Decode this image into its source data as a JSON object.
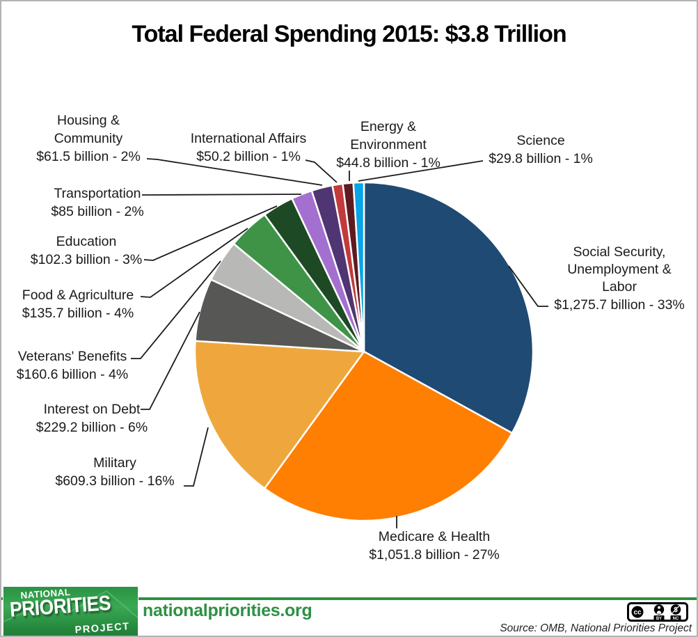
{
  "title": "Total Federal Spending 2015: $3.8 Trillion",
  "chart_data": {
    "type": "pie",
    "title": "Total Federal Spending 2015: $3.8 Trillion",
    "total": "$3.8 Trillion",
    "units": "billions of USD",
    "start_angle_deg": 0,
    "direction": "clockwise",
    "legend_position": "outside callout labels with leader lines",
    "slices": [
      {
        "name": "Social Security, Unemployment & Labor",
        "label_lines": [
          "Social Security,",
          "Unemployment &",
          "Labor"
        ],
        "value_text": "$1,275.7 billion - 33%",
        "value": 1275.7,
        "percent": 33,
        "color": "#1f4a73"
      },
      {
        "name": "Medicare & Health",
        "label_lines": [
          "Medicare & Health"
        ],
        "value_text": "$1,051.8 billion - 27%",
        "value": 1051.8,
        "percent": 27,
        "color": "#fe7f01"
      },
      {
        "name": "Military",
        "label_lines": [
          "Military"
        ],
        "value_text": "$609.3 billion - 16%",
        "value": 609.3,
        "percent": 16,
        "color": "#efa73d"
      },
      {
        "name": "Interest on Debt",
        "label_lines": [
          "Interest on Debt"
        ],
        "value_text": "$229.2 billion - 6%",
        "value": 229.2,
        "percent": 6,
        "color": "#575756"
      },
      {
        "name": "Veterans' Benefits",
        "label_lines": [
          "Veterans' Benefits"
        ],
        "value_text": "$160.6 billion - 4%",
        "value": 160.6,
        "percent": 4,
        "color": "#b8b8b6"
      },
      {
        "name": "Food & Agriculture",
        "label_lines": [
          "Food & Agriculture"
        ],
        "value_text": "$135.7 billion - 4%",
        "value": 135.7,
        "percent": 4,
        "color": "#3f9347"
      },
      {
        "name": "Education",
        "label_lines": [
          "Education"
        ],
        "value_text": "$102.3 billion - 3%",
        "value": 102.3,
        "percent": 3,
        "color": "#1d4a24"
      },
      {
        "name": "Transportation",
        "label_lines": [
          "Transportation"
        ],
        "value_text": "$85 billion - 2%",
        "value": 85,
        "percent": 2,
        "color": "#a470cf"
      },
      {
        "name": "Housing & Community",
        "label_lines": [
          "Housing &",
          "Community"
        ],
        "value_text": "$61.5 billion - 2%",
        "value": 61.5,
        "percent": 2,
        "color": "#4f3572"
      },
      {
        "name": "International Affairs",
        "label_lines": [
          "International Affairs"
        ],
        "value_text": "$50.2 billion - 1%",
        "value": 50.2,
        "percent": 1,
        "color": "#c23b3c"
      },
      {
        "name": "Energy & Environment",
        "label_lines": [
          "Energy &",
          "Environment"
        ],
        "value_text": "$44.8 billion - 1%",
        "value": 44.8,
        "percent": 1,
        "color": "#5e1b1f"
      },
      {
        "name": "Science",
        "label_lines": [
          "Science"
        ],
        "value_text": "$29.8 billion - 1%",
        "value": 29.8,
        "percent": 1,
        "color": "#09a4e8"
      }
    ]
  },
  "footer": {
    "logo": {
      "line1": "NATIONAL",
      "line2": "PRIORITIES",
      "line3": "PROJECT"
    },
    "website": "nationalpriorities.org",
    "license": {
      "cc_text": "cc",
      "by_label": "BY",
      "nc_label": "NC",
      "nc_symbol": "$"
    },
    "source": "Source: OMB, National Priorities Project"
  },
  "colors": {
    "background": "#ffffff",
    "border": "#b3b3b3",
    "text": "#1a1a1a",
    "leader_line": "#1a1a1a",
    "slice_gap_stroke": "#ffffff",
    "brand_green": "#2e9143",
    "website_green": "#2e9045"
  }
}
